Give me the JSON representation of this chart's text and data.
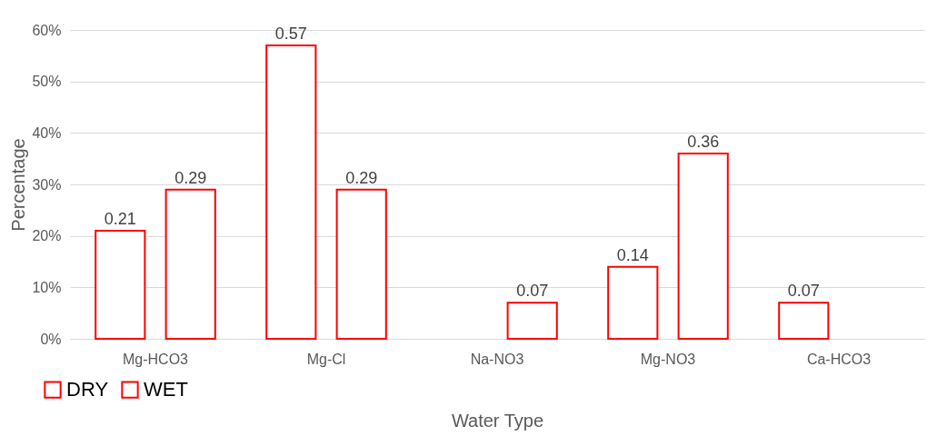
{
  "chart_data": {
    "type": "bar",
    "xlabel": "Water Type",
    "ylabel": "Percentage",
    "categories": [
      "Mg-HCO3",
      "Mg-Cl",
      "Na-NO3",
      "Mg-NO3",
      "Ca-HCO3"
    ],
    "series": [
      {
        "name": "DRY",
        "color": "#ff0000",
        "values": [
          0.21,
          0.57,
          null,
          0.14,
          0.07
        ]
      },
      {
        "name": "WET",
        "color": "#ff0000",
        "values": [
          0.29,
          0.29,
          0.07,
          0.36,
          null
        ]
      }
    ],
    "ylim": [
      0,
      0.6
    ],
    "yticks": [
      {
        "value": 0,
        "label": "0%"
      },
      {
        "value": 0.1,
        "label": "10%"
      },
      {
        "value": 0.2,
        "label": "20%"
      },
      {
        "value": 0.3,
        "label": "30%"
      },
      {
        "value": 0.4,
        "label": "40%"
      },
      {
        "value": 0.5,
        "label": "50%"
      },
      {
        "value": 0.6,
        "label": "60%"
      }
    ],
    "grid": "y",
    "legend": "bottom left",
    "data_labels": true
  }
}
